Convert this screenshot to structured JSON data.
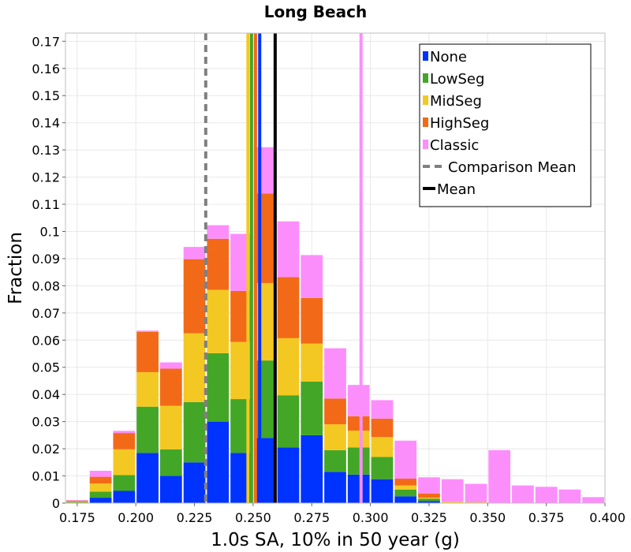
{
  "chart_data": {
    "type": "bar",
    "stacked": true,
    "title": "Long Beach",
    "xlabel": "1.0s SA, 10% in 50 year (g)",
    "ylabel": "Fraction",
    "xlim": [
      0.17,
      0.4
    ],
    "ylim": [
      0,
      0.173
    ],
    "bin_width": 0.01,
    "x_ticks": [
      "0.175",
      "0.200",
      "0.225",
      "0.250",
      "0.275",
      "0.300",
      "0.325",
      "0.350",
      "0.375",
      "0.400"
    ],
    "y_ticks": [
      "0",
      "0.01",
      "0.02",
      "0.03",
      "0.04",
      "0.05",
      "0.06",
      "0.07",
      "0.08",
      "0.09",
      "0.1",
      "0.11",
      "0.12",
      "0.13",
      "0.14",
      "0.15",
      "0.16",
      "0.17"
    ],
    "bin_starts": [
      0.17,
      0.18,
      0.19,
      0.2,
      0.21,
      0.22,
      0.23,
      0.24,
      0.25,
      0.26,
      0.27,
      0.28,
      0.29,
      0.3,
      0.31,
      0.32,
      0.33,
      0.34,
      0.35,
      0.36,
      0.37,
      0.38,
      0.39
    ],
    "series": [
      {
        "name": "None",
        "color": "#0033ff",
        "values": [
          0.0,
          0.002,
          0.0045,
          0.0185,
          0.01,
          0.015,
          0.03,
          0.0185,
          0.024,
          0.0205,
          0.025,
          0.0115,
          0.0105,
          0.0088,
          0.0025,
          0.0008,
          0.0,
          0.0,
          0.0,
          0.0,
          0.0,
          0.0,
          0.0
        ]
      },
      {
        "name": "LowSeg",
        "color": "#44a626",
        "values": [
          0.0003,
          0.0022,
          0.0058,
          0.017,
          0.0098,
          0.0222,
          0.0252,
          0.0198,
          0.0285,
          0.0192,
          0.0197,
          0.008,
          0.01,
          0.0082,
          0.0025,
          0.0008,
          0.0,
          0.0,
          0.0,
          0.0,
          0.0,
          0.0,
          0.0
        ]
      },
      {
        "name": "MidSeg",
        "color": "#f4c822",
        "values": [
          0.0002,
          0.003,
          0.0095,
          0.0127,
          0.016,
          0.0253,
          0.0233,
          0.021,
          0.0285,
          0.021,
          0.014,
          0.0095,
          0.0062,
          0.0073,
          0.0015,
          0.0004,
          0.0005,
          0.0003,
          0.0,
          0.0,
          0.0,
          0.0,
          0.0
        ]
      },
      {
        "name": "HighSeg",
        "color": "#f26a17",
        "values": [
          0.0004,
          0.0025,
          0.006,
          0.0148,
          0.0137,
          0.0273,
          0.0188,
          0.0188,
          0.033,
          0.0225,
          0.0168,
          0.0095,
          0.0053,
          0.0068,
          0.0025,
          0.0015,
          0.0,
          0.0,
          0.0,
          0.0,
          0.0,
          0.0,
          0.0
        ]
      },
      {
        "name": "Classic",
        "color": "#fc8efc",
        "values": [
          0.0002,
          0.0022,
          0.0008,
          0.0005,
          0.0023,
          0.0045,
          0.005,
          0.021,
          0.017,
          0.0205,
          0.0158,
          0.0185,
          0.0115,
          0.0068,
          0.014,
          0.006,
          0.0083,
          0.0068,
          0.0195,
          0.0065,
          0.006,
          0.005,
          0.0022
        ]
      }
    ],
    "vertical_lines": [
      {
        "name": "MidSeg mean",
        "x": 0.2478,
        "color": "#f4c822",
        "style": "solid"
      },
      {
        "name": "LowSeg mean",
        "x": 0.2493,
        "color": "#44a626",
        "style": "solid"
      },
      {
        "name": "HighSeg mean",
        "x": 0.251,
        "color": "#f26a17",
        "style": "solid"
      },
      {
        "name": "None mean",
        "x": 0.2528,
        "color": "#0033ff",
        "style": "solid"
      },
      {
        "name": "Classic mean",
        "x": 0.296,
        "color": "#fc8efc",
        "style": "solid"
      },
      {
        "name": "Comparison Mean",
        "x": 0.2298,
        "color": "#808080",
        "style": "dashed"
      },
      {
        "name": "Mean",
        "x": 0.2594,
        "color": "#000000",
        "style": "solid"
      }
    ],
    "legend": {
      "position": "top-right",
      "items": [
        {
          "label": "None",
          "color": "#0033ff",
          "kind": "box"
        },
        {
          "label": "LowSeg",
          "color": "#44a626",
          "kind": "box"
        },
        {
          "label": "MidSeg",
          "color": "#f4c822",
          "kind": "box"
        },
        {
          "label": "HighSeg",
          "color": "#f26a17",
          "kind": "box"
        },
        {
          "label": "Classic",
          "color": "#fc8efc",
          "kind": "box"
        },
        {
          "label": "Comparison Mean",
          "color": "#808080",
          "kind": "dashed"
        },
        {
          "label": "Mean",
          "color": "#000000",
          "kind": "line"
        }
      ]
    },
    "grid": true
  }
}
